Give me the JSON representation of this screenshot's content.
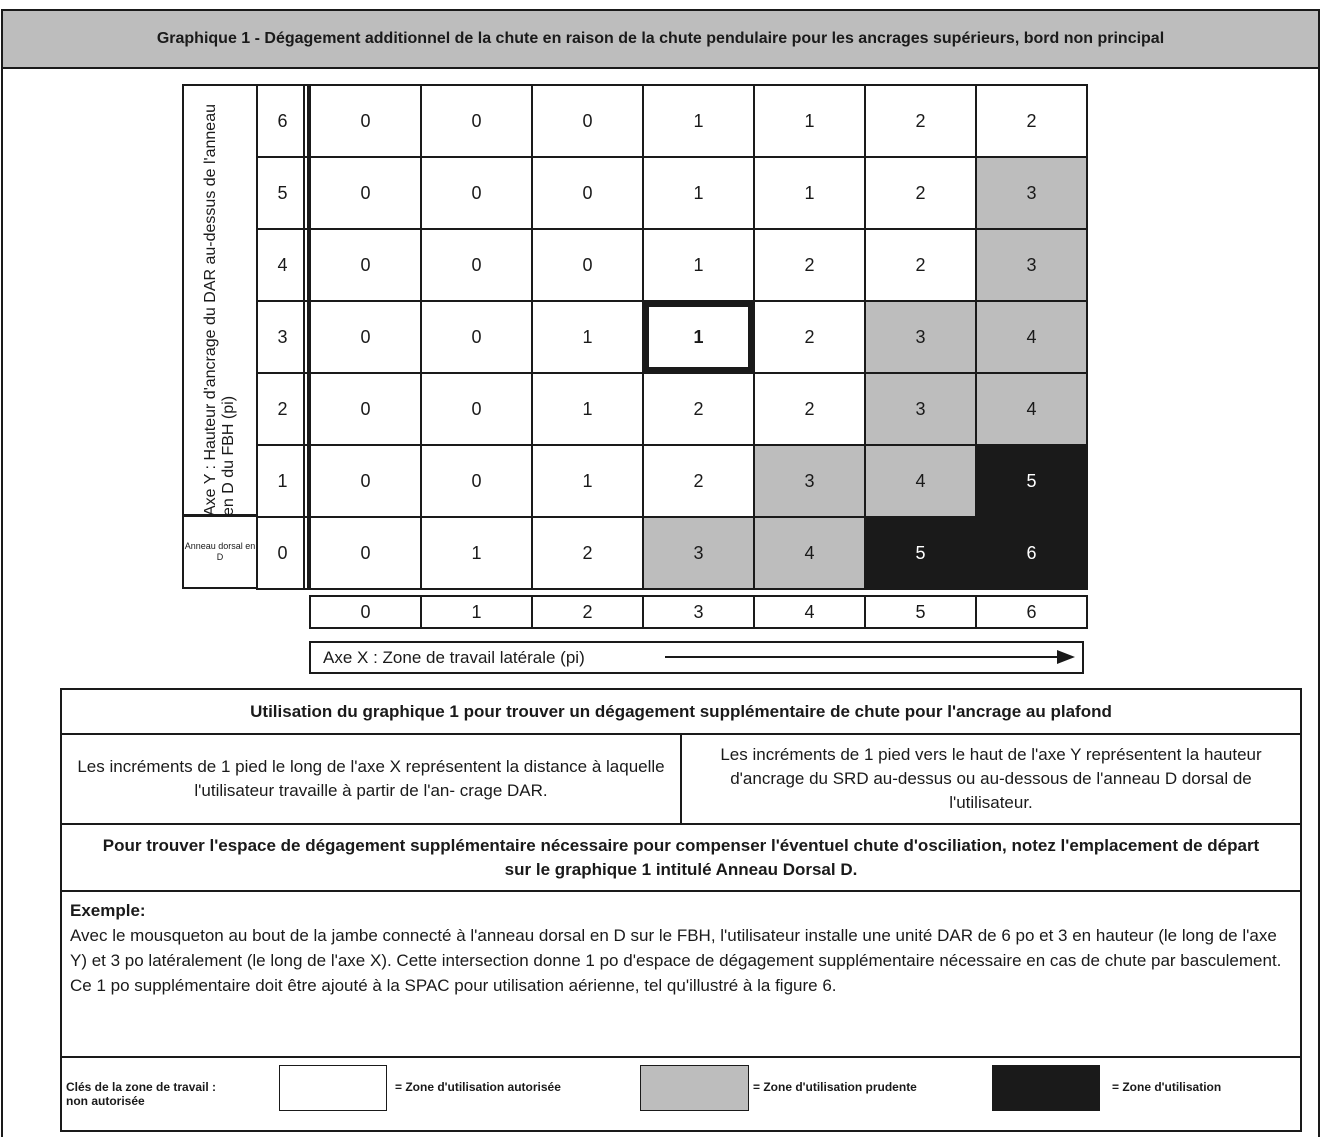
{
  "title": "Graphique 1 - Dégagement additionnel de la chute en raison de la chute pendulaire pour les ancrages supérieurs, bord non principal",
  "y_axis_label": "Axe Y : Hauteur d'ancrage du DAR au-dessus de l'anneau en D du FBH (pi)",
  "origin_label": "Anneau dorsal en D",
  "x_axis_label": "Axe X : Zone de travail latérale (pi)",
  "colors": {
    "caution": "#bdbdbd",
    "unauthorized": "#1a1a1a",
    "authorized": "#ffffff"
  },
  "chart_data": {
    "type": "table",
    "x_values": [
      "0",
      "1",
      "2",
      "3",
      "4",
      "5",
      "6"
    ],
    "y_values": [
      "6",
      "5",
      "4",
      "3",
      "2",
      "1",
      "0"
    ],
    "rows": [
      [
        "0",
        "0",
        "0",
        "1",
        "1",
        "2",
        "2"
      ],
      [
        "0",
        "0",
        "0",
        "1",
        "1",
        "2",
        "3"
      ],
      [
        "0",
        "0",
        "0",
        "1",
        "2",
        "2",
        "3"
      ],
      [
        "0",
        "0",
        "1",
        "1",
        "2",
        "3",
        "4"
      ],
      [
        "0",
        "0",
        "1",
        "2",
        "2",
        "3",
        "4"
      ],
      [
        "0",
        "0",
        "1",
        "2",
        "3",
        "4",
        "5"
      ],
      [
        "0",
        "1",
        "2",
        "3",
        "4",
        "5",
        "6"
      ]
    ],
    "zones": [
      [
        "a",
        "a",
        "a",
        "a",
        "a",
        "a",
        "a"
      ],
      [
        "a",
        "a",
        "a",
        "a",
        "a",
        "a",
        "c"
      ],
      [
        "a",
        "a",
        "a",
        "a",
        "a",
        "a",
        "c"
      ],
      [
        "a",
        "a",
        "a",
        "a",
        "a",
        "c",
        "c"
      ],
      [
        "a",
        "a",
        "a",
        "a",
        "a",
        "c",
        "c"
      ],
      [
        "a",
        "a",
        "a",
        "a",
        "c",
        "c",
        "u"
      ],
      [
        "a",
        "a",
        "a",
        "c",
        "c",
        "u",
        "u"
      ]
    ],
    "highlighted_cell": {
      "y": "3",
      "x": "3"
    }
  },
  "usage": {
    "title": "Utilisation du graphique 1 pour trouver un dégagement supplémentaire de chute pour l'ancrage au plafond",
    "x_desc": "Les incréments de 1 pied le long de l'axe X représentent la distance à laquelle l'utilisateur travaille à partir de l'an- crage DAR.",
    "y_desc": "Les incréments de 1 pied vers le haut de l'axe Y représentent la hauteur d'ancrage du SRD au-dessus ou au-dessous de l'anneau D dorsal de l'utilisateur.",
    "find": "Pour trouver l'espace de dégagement supplémentaire nécessaire pour compenser l'éventuel chute d'osciliation, notez l'emplacement de départ sur le graphique 1 intitulé Anneau Dorsal D.",
    "example_label": "Exemple:",
    "example_text": "Avec le mousqueton au bout de la jambe connecté à l'anneau dorsal en D sur le FBH, l'utilisateur installe une unité DAR de 6 po et 3 en hauteur (le long de l'axe Y) et 3 po latéralement (le long de l'axe X). Cette intersection donne 1 po d'espace de dégagement supplémentaire nécessaire en cas de chute par basculement. Ce 1 po supplémentaire doit être ajouté à la SPAC pour utilisation aérienne, tel qu'illustré à la figure 6."
  },
  "keys": {
    "label_line1": "Clés de la zone de travail :",
    "label_line2": "non autorisée",
    "authorized": "= Zone d'utilisation autorisée",
    "caution": "= Zone d'utilisation prudente",
    "unauthorized": "= Zone d'utilisation"
  }
}
